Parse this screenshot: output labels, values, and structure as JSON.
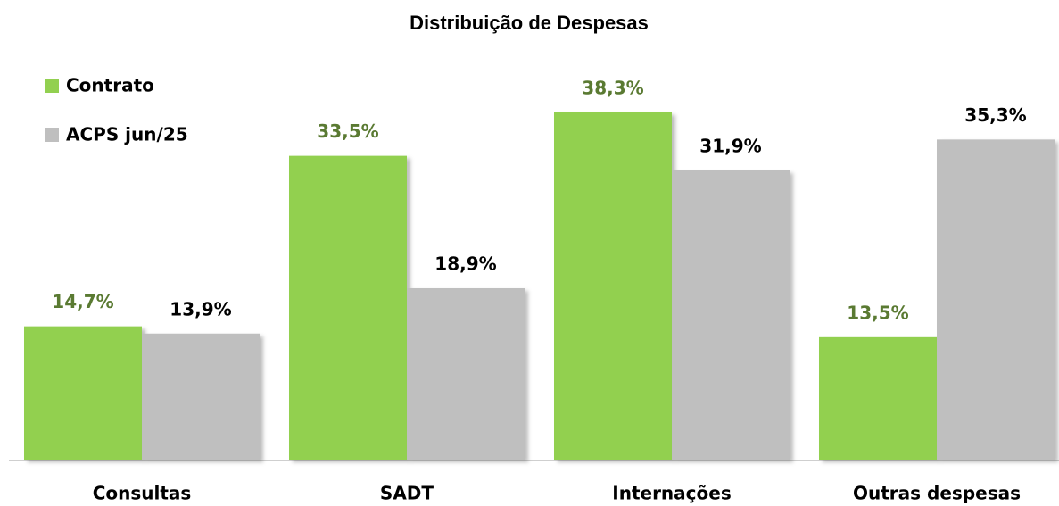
{
  "chart_data": {
    "type": "bar",
    "title": "Distribuição de Despesas",
    "categories": [
      "Consultas",
      "SADT",
      "Internações",
      "Outras despesas"
    ],
    "series": [
      {
        "name": "Contrato",
        "color": "#92d050",
        "label_color": "#5a7a32",
        "values": [
          14.7,
          33.5,
          38.3,
          13.5
        ],
        "value_labels": [
          "14,7%",
          "33,5%",
          "38,3%",
          "13,5%"
        ]
      },
      {
        "name": "ACPS jun/25",
        "color": "#bfbfbf",
        "label_color": "#000000",
        "values": [
          13.9,
          18.9,
          31.9,
          35.3
        ],
        "value_labels": [
          "13,9%",
          "18,9%",
          "31,9%",
          "35,3%"
        ]
      }
    ],
    "legend": "upper left"
  }
}
